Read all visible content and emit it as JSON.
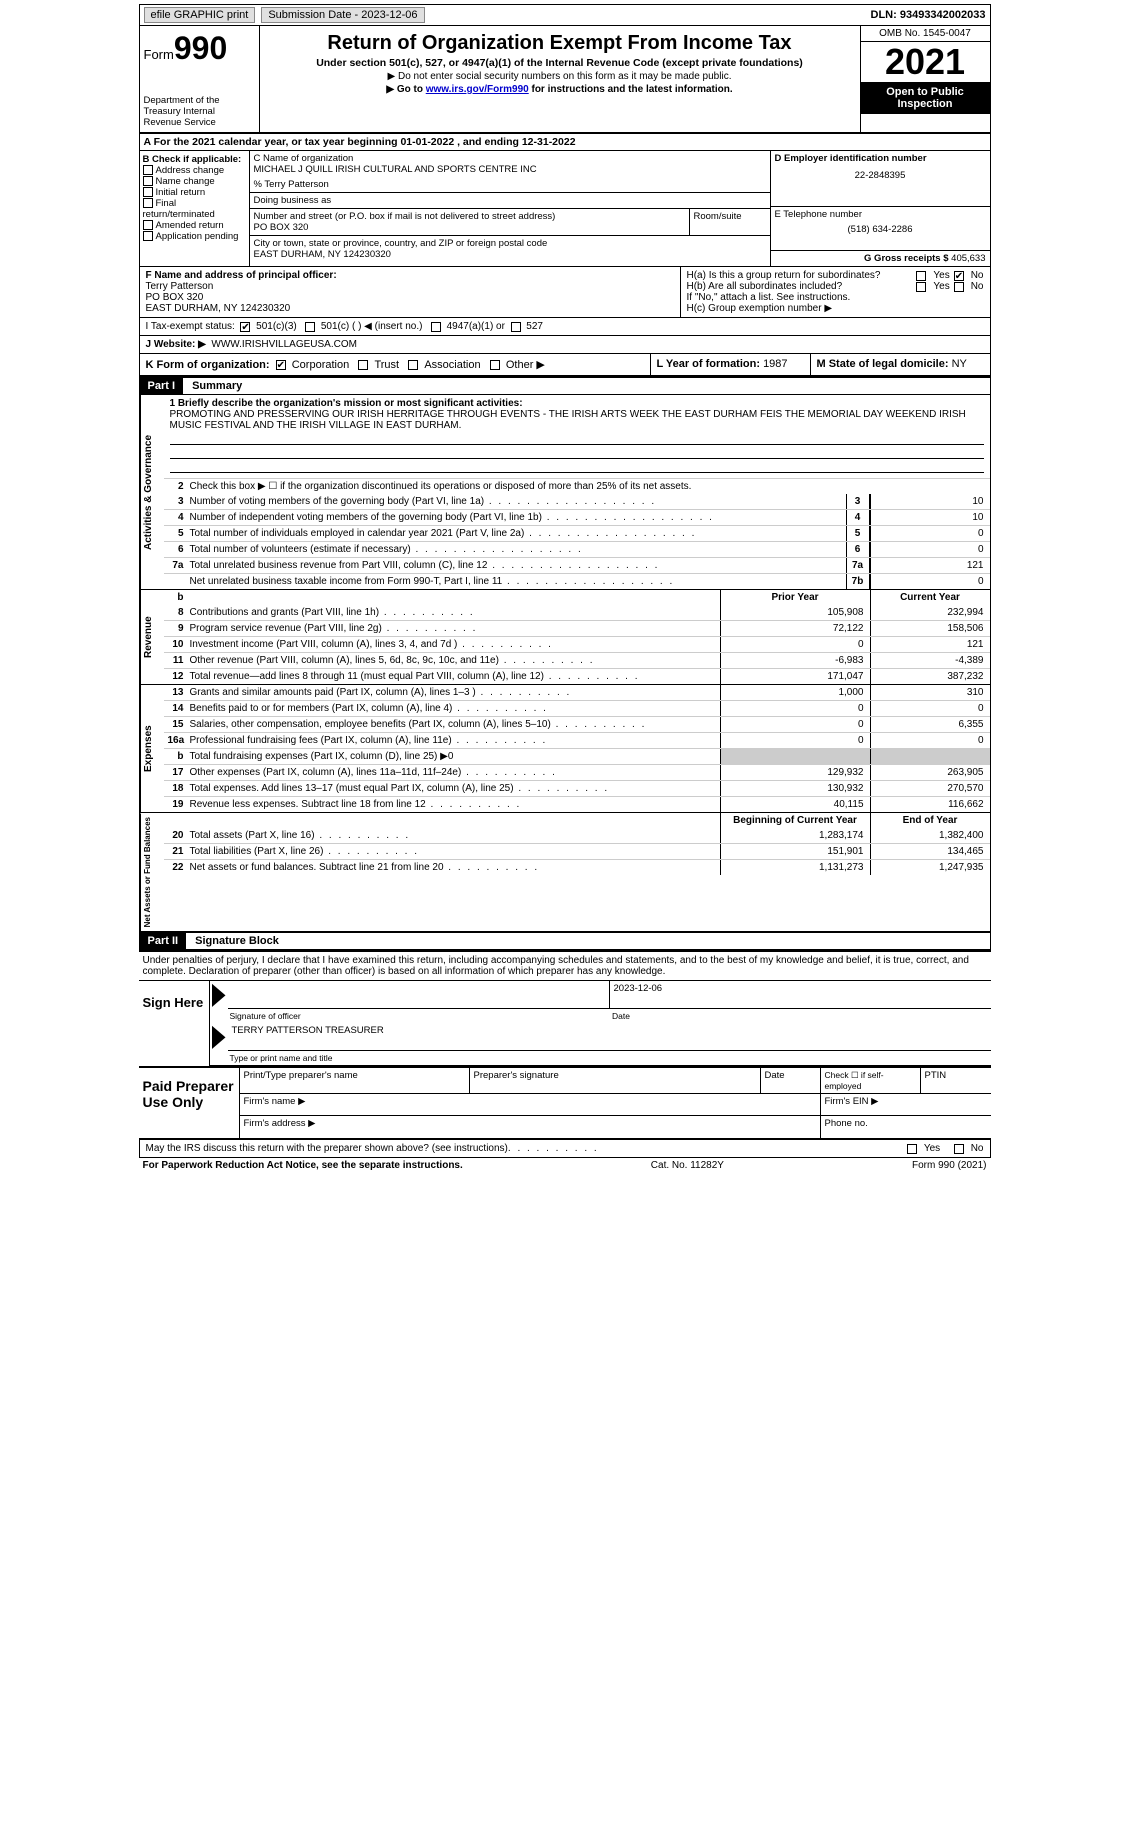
{
  "topbar": {
    "efile_label": "efile GRAPHIC print",
    "submission_label": "Submission Date - 2023-12-06",
    "dln_label": "DLN: 93493342002033"
  },
  "header": {
    "form_label": "Form",
    "form_number": "990",
    "dept": "Department of the Treasury\nInternal Revenue Service",
    "title": "Return of Organization Exempt From Income Tax",
    "subtitle": "Under section 501(c), 527, or 4947(a)(1) of the Internal Revenue Code (except private foundations)",
    "instr1": "▶ Do not enter social security numbers on this form as it may be made public.",
    "instr2_a": "▶ Go to ",
    "instr2_link": "www.irs.gov/Form990",
    "instr2_b": " for instructions and the latest information.",
    "omb": "OMB No. 1545-0047",
    "year": "2021",
    "open": "Open to Public Inspection"
  },
  "row_a": "A For the 2021 calendar year, or tax year beginning 01-01-2022    , and ending 12-31-2022",
  "section_b": {
    "label": "B Check if applicable:",
    "items": [
      "Address change",
      "Name change",
      "Initial return",
      "Final return/terminated",
      "Amended return",
      "Application pending"
    ]
  },
  "section_c": {
    "name_label": "C Name of organization",
    "name": "MICHAEL J QUILL IRISH CULTURAL AND SPORTS CENTRE INC",
    "care_of": "% Terry Patterson",
    "dba_label": "Doing business as",
    "street_label": "Number and street (or P.O. box if mail is not delivered to street address)",
    "room_label": "Room/suite",
    "street": "PO BOX 320",
    "city_label": "City or town, state or province, country, and ZIP or foreign postal code",
    "city": "EAST DURHAM, NY  124230320"
  },
  "section_d": {
    "ein_label": "D Employer identification number",
    "ein": "22-2848395",
    "phone_label": "E Telephone number",
    "phone": "(518) 634-2286",
    "gross_label": "G Gross receipts $ ",
    "gross": "405,633"
  },
  "section_f": {
    "label": "F Name and address of principal officer:",
    "name": "Terry Patterson",
    "street": "PO BOX 320",
    "city": "EAST DURHAM, NY  124230320"
  },
  "section_h": {
    "ha": "H(a)  Is this a group return for subordinates?",
    "hb": "H(b)  Are all subordinates included?",
    "hb_note": "If \"No,\" attach a list. See instructions.",
    "hc": "H(c)  Group exemption number ▶",
    "yes": "Yes",
    "no": "No"
  },
  "row_i": {
    "label": "I   Tax-exempt status:",
    "opt1": "501(c)(3)",
    "opt2": "501(c) (  ) ◀ (insert no.)",
    "opt3": "4947(a)(1) or",
    "opt4": "527"
  },
  "row_j": {
    "label": "J   Website: ▶",
    "value": "WWW.IRISHVILLAGEUSA.COM"
  },
  "row_k": {
    "label": "K Form of organization:",
    "opts": [
      "Corporation",
      "Trust",
      "Association",
      "Other ▶"
    ],
    "l_label": "L Year of formation: ",
    "l_val": "1987",
    "m_label": "M State of legal domicile: ",
    "m_val": "NY"
  },
  "part1": {
    "hdr": "Part I",
    "title": "Summary",
    "q1_label": "1   Briefly describe the organization's mission or most significant activities:",
    "q1_text": "PROMOTING AND PRESSERVING OUR IRISH HERRITAGE THROUGH EVENTS - THE IRISH ARTS WEEK THE EAST DURHAM FEIS THE MEMORIAL DAY WEEKEND IRISH MUSIC FESTIVAL AND THE IRISH VILLAGE IN EAST DURHAM.",
    "q2": "Check this box ▶ ☐  if the organization discontinued its operations or disposed of more than 25% of its net assets.",
    "lines_gov": [
      {
        "n": "3",
        "d": "Number of voting members of the governing body (Part VI, line 1a)",
        "box": "3",
        "v": "10"
      },
      {
        "n": "4",
        "d": "Number of independent voting members of the governing body (Part VI, line 1b)",
        "box": "4",
        "v": "10"
      },
      {
        "n": "5",
        "d": "Total number of individuals employed in calendar year 2021 (Part V, line 2a)",
        "box": "5",
        "v": "0"
      },
      {
        "n": "6",
        "d": "Total number of volunteers (estimate if necessary)",
        "box": "6",
        "v": "0"
      },
      {
        "n": "7a",
        "d": "Total unrelated business revenue from Part VIII, column (C), line 12",
        "box": "7a",
        "v": "121"
      },
      {
        "n": "",
        "d": "Net unrelated business taxable income from Form 990-T, Part I, line 11",
        "box": "7b",
        "v": "0"
      }
    ],
    "col_prior": "Prior Year",
    "col_current": "Current Year",
    "lines_rev": [
      {
        "n": "8",
        "d": "Contributions and grants (Part VIII, line 1h)",
        "p": "105,908",
        "c": "232,994"
      },
      {
        "n": "9",
        "d": "Program service revenue (Part VIII, line 2g)",
        "p": "72,122",
        "c": "158,506"
      },
      {
        "n": "10",
        "d": "Investment income (Part VIII, column (A), lines 3, 4, and 7d )",
        "p": "0",
        "c": "121"
      },
      {
        "n": "11",
        "d": "Other revenue (Part VIII, column (A), lines 5, 6d, 8c, 9c, 10c, and 11e)",
        "p": "-6,983",
        "c": "-4,389"
      },
      {
        "n": "12",
        "d": "Total revenue—add lines 8 through 11 (must equal Part VIII, column (A), line 12)",
        "p": "171,047",
        "c": "387,232"
      }
    ],
    "lines_exp": [
      {
        "n": "13",
        "d": "Grants and similar amounts paid (Part IX, column (A), lines 1–3 )",
        "p": "1,000",
        "c": "310"
      },
      {
        "n": "14",
        "d": "Benefits paid to or for members (Part IX, column (A), line 4)",
        "p": "0",
        "c": "0"
      },
      {
        "n": "15",
        "d": "Salaries, other compensation, employee benefits (Part IX, column (A), lines 5–10)",
        "p": "0",
        "c": "6,355"
      },
      {
        "n": "16a",
        "d": "Professional fundraising fees (Part IX, column (A), line 11e)",
        "p": "0",
        "c": "0"
      },
      {
        "n": "b",
        "d": "Total fundraising expenses (Part IX, column (D), line 25) ▶0",
        "p": "",
        "c": "",
        "shade": true
      },
      {
        "n": "17",
        "d": "Other expenses (Part IX, column (A), lines 11a–11d, 11f–24e)",
        "p": "129,932",
        "c": "263,905"
      },
      {
        "n": "18",
        "d": "Total expenses. Add lines 13–17 (must equal Part IX, column (A), line 25)",
        "p": "130,932",
        "c": "270,570"
      },
      {
        "n": "19",
        "d": "Revenue less expenses. Subtract line 18 from line 12",
        "p": "40,115",
        "c": "116,662"
      }
    ],
    "col_begin": "Beginning of Current Year",
    "col_end": "End of Year",
    "lines_net": [
      {
        "n": "20",
        "d": "Total assets (Part X, line 16)",
        "p": "1,283,174",
        "c": "1,382,400"
      },
      {
        "n": "21",
        "d": "Total liabilities (Part X, line 26)",
        "p": "151,901",
        "c": "134,465"
      },
      {
        "n": "22",
        "d": "Net assets or fund balances. Subtract line 21 from line 20",
        "p": "1,131,273",
        "c": "1,247,935"
      }
    ],
    "vtab_gov": "Activities & Governance",
    "vtab_rev": "Revenue",
    "vtab_exp": "Expenses",
    "vtab_net": "Net Assets or Fund Balances"
  },
  "part2": {
    "hdr": "Part II",
    "title": "Signature Block",
    "intro": "Under penalties of perjury, I declare that I have examined this return, including accompanying schedules and statements, and to the best of my knowledge and belief, it is true, correct, and complete. Declaration of preparer (other than officer) is based on all information of which preparer has any knowledge.",
    "sign_here": "Sign Here",
    "sig_officer": "Signature of officer",
    "sig_date_label": "Date",
    "sig_date": "2023-12-06",
    "officer_name": "TERRY PATTERSON  TREASURER",
    "type_name": "Type or print name and title",
    "paid": "Paid Preparer Use Only",
    "prep_name": "Print/Type preparer's name",
    "prep_sig": "Preparer's signature",
    "date": "Date",
    "check_self": "Check ☐ if self-employed",
    "ptin": "PTIN",
    "firm_name": "Firm's name    ▶",
    "firm_ein": "Firm's EIN ▶",
    "firm_addr": "Firm's address ▶",
    "phone": "Phone no."
  },
  "footer": {
    "discuss": "May the IRS discuss this return with the preparer shown above? (see instructions)",
    "yes": "Yes",
    "no": "No",
    "paperwork": "For Paperwork Reduction Act Notice, see the separate instructions.",
    "cat": "Cat. No. 11282Y",
    "form": "Form 990 (2021)"
  }
}
